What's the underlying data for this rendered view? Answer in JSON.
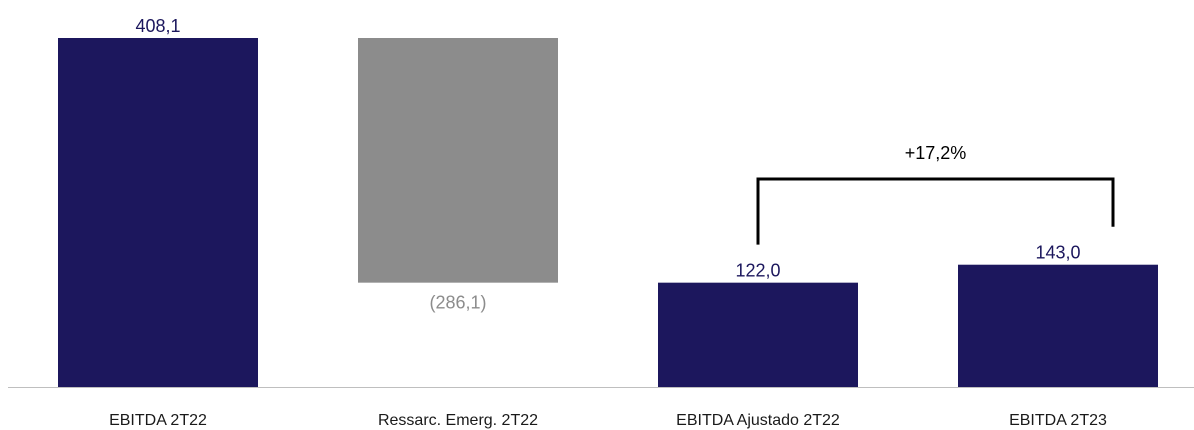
{
  "chart_data": {
    "type": "bar",
    "subtype": "waterfall",
    "categories": [
      "EBITDA 2T22",
      "Ressarc. Emerg. 2T22",
      "EBITDA Ajustado 2T22",
      "EBITDA 2T23"
    ],
    "values": [
      408.1,
      -286.1,
      122.0,
      143.0
    ],
    "data_labels": [
      "408,1",
      "(286,1)",
      "122,0",
      "143,0"
    ],
    "bar_kinds": [
      "total",
      "delta",
      "total",
      "total"
    ],
    "colors": {
      "total": "#1c175d",
      "delta": "#8c8c8c",
      "total_label": "#1c175d",
      "delta_label": "#8c8c8c",
      "axis": "#bfbfbf",
      "bracket": "#000000"
    },
    "annotation": {
      "text": "+17,2%",
      "from_category": "EBITDA Ajustado 2T22",
      "to_category": "EBITDA 2T23"
    },
    "ylim": [
      0,
      408.1
    ],
    "grid": false,
    "legend": "none",
    "title": "",
    "xlabel": "",
    "ylabel": ""
  }
}
